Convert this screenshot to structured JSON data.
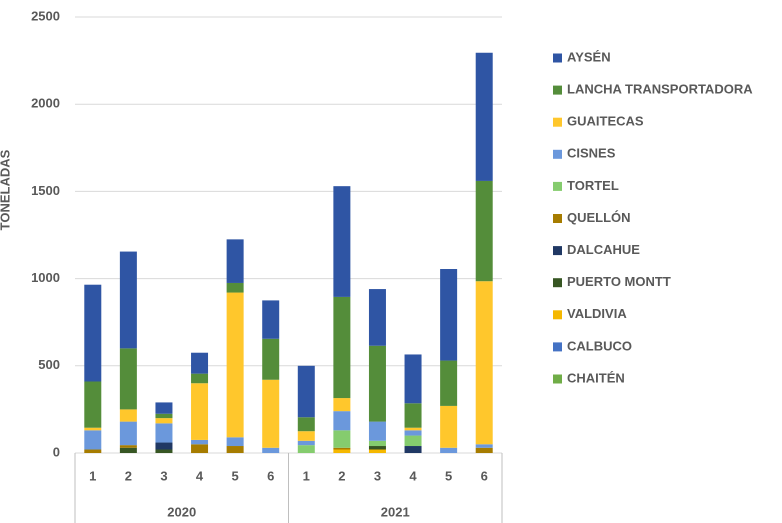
{
  "chart_data": {
    "type": "stacked_bar",
    "y_label": "TONELADAS",
    "categories": [
      "1",
      "2",
      "3",
      "4",
      "5",
      "6",
      "1",
      "2",
      "3",
      "4",
      "5",
      "6"
    ],
    "groups": [
      {
        "name": "2020",
        "size": 6
      },
      {
        "name": "2021",
        "size": 6
      }
    ],
    "ylim": [
      0,
      2500
    ],
    "yticks": [
      0,
      500,
      1000,
      1500,
      2000,
      2500
    ],
    "grid": true,
    "legend": "right",
    "series": [
      {
        "name": "AYSÉN",
        "color": "#2f55a4",
        "values": [
          555,
          555,
          65,
          120,
          250,
          220,
          295,
          635,
          325,
          280,
          525,
          735
        ]
      },
      {
        "name": "LANCHA TRANSPORTADORA",
        "color": "#548d3a",
        "values": [
          265,
          350,
          25,
          55,
          55,
          235,
          80,
          580,
          435,
          140,
          260,
          575
        ]
      },
      {
        "name": "GUAITECAS",
        "color": "#ffc72c",
        "values": [
          15,
          70,
          30,
          325,
          830,
          390,
          55,
          75,
          0,
          15,
          240,
          935
        ]
      },
      {
        "name": "CISNES",
        "color": "#6b98dc",
        "values": [
          110,
          135,
          110,
          25,
          50,
          30,
          25,
          110,
          110,
          30,
          30,
          20
        ]
      },
      {
        "name": "TORTEL",
        "color": "#85cc6e",
        "values": [
          0,
          0,
          0,
          0,
          0,
          0,
          45,
          100,
          30,
          60,
          0,
          0
        ]
      },
      {
        "name": "QUELLÓN",
        "color": "#a67c00",
        "values": [
          20,
          15,
          0,
          50,
          40,
          0,
          0,
          10,
          0,
          0,
          0,
          30
        ]
      },
      {
        "name": "DALCAHUE",
        "color": "#203864",
        "values": [
          0,
          0,
          40,
          0,
          0,
          0,
          0,
          0,
          0,
          40,
          0,
          0
        ]
      },
      {
        "name": "PUERTO MONTT",
        "color": "#375623",
        "values": [
          0,
          30,
          20,
          0,
          0,
          0,
          0,
          0,
          20,
          0,
          0,
          0
        ]
      },
      {
        "name": "VALDIVIA",
        "color": "#f5b800",
        "values": [
          0,
          0,
          0,
          0,
          0,
          0,
          0,
          20,
          20,
          0,
          0,
          0
        ]
      },
      {
        "name": "CALBUCO",
        "color": "#4472c4",
        "values": [
          0,
          0,
          0,
          0,
          0,
          0,
          0,
          0,
          0,
          0,
          0,
          0
        ]
      },
      {
        "name": "CHAITÉN",
        "color": "#70ad47",
        "values": [
          0,
          0,
          0,
          0,
          0,
          0,
          0,
          0,
          0,
          0,
          0,
          0
        ]
      }
    ]
  }
}
